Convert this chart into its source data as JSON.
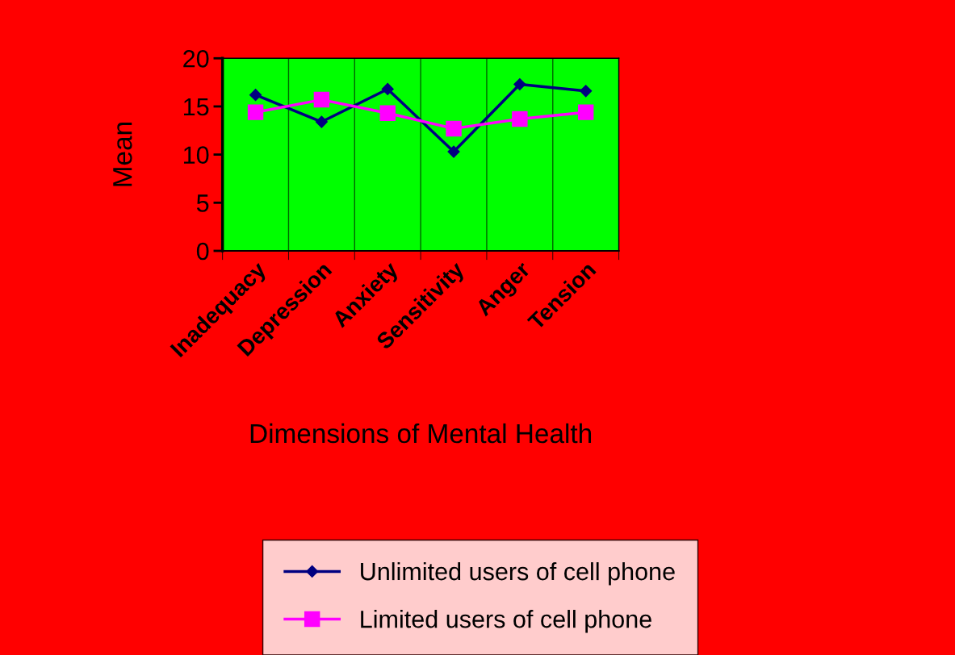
{
  "chart_data": {
    "type": "line",
    "xlabel": "Dimensions of Mental Health",
    "ylabel": "Mean",
    "categories": [
      "Inadequacy",
      "Depression",
      "Anxiety",
      "Sensitivity",
      "Anger",
      "Tension"
    ],
    "series": [
      {
        "name": "Unlimited users of cell phone",
        "color": "#000080",
        "marker": "diamond",
        "values": [
          16.2,
          13.4,
          16.8,
          10.3,
          17.3,
          16.6
        ]
      },
      {
        "name": "Limited users of cell phone",
        "color": "#ff00ff",
        "marker": "square",
        "values": [
          14.4,
          15.7,
          14.3,
          12.7,
          13.7,
          14.4
        ]
      }
    ],
    "ylim": [
      0,
      20
    ],
    "yticks": [
      0,
      5,
      10,
      15,
      20
    ],
    "grid": "x",
    "legend": "bottom"
  }
}
